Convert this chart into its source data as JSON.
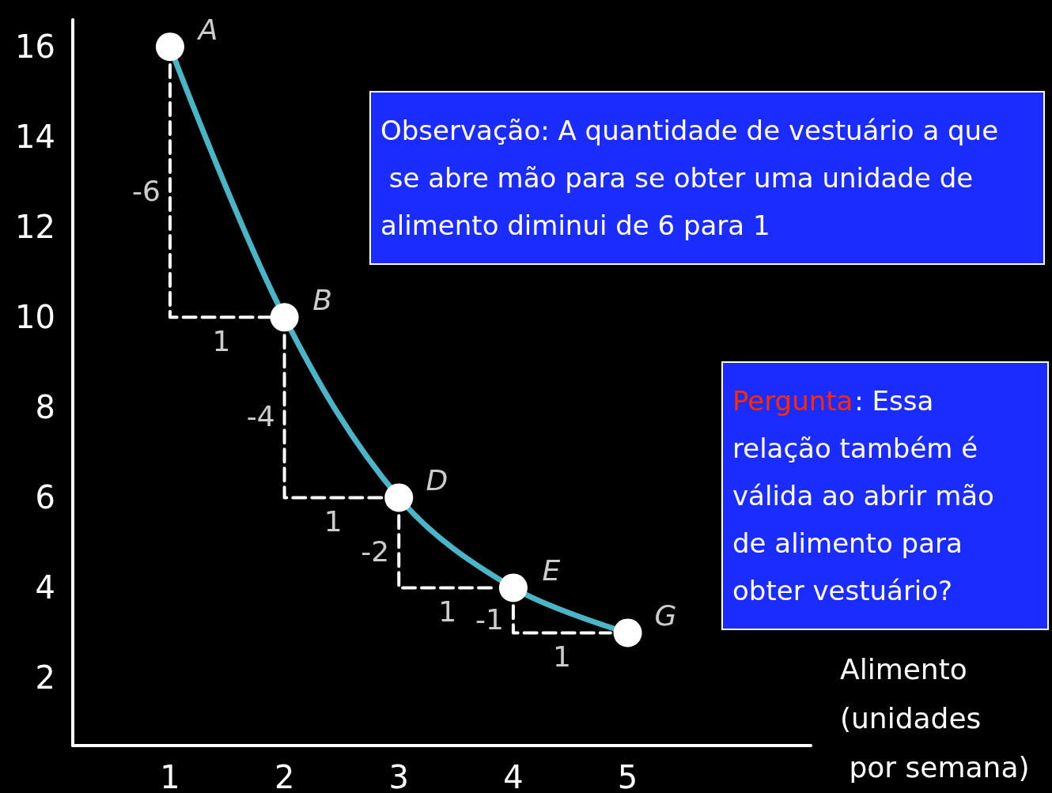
{
  "chart_data": {
    "type": "line",
    "xlabel": "Alimento\n(unidades\n por semana)",
    "x": [
      1,
      2,
      3,
      4,
      5
    ],
    "series": [
      {
        "color": "#4bb5c8",
        "values": [
          16,
          10,
          6,
          4,
          3
        ],
        "marker": "circle"
      },
      {
        "type": "line",
        "line_style": "dashed",
        "color": "#ffffff",
        "x": [
          1,
          1,
          1.9
        ],
        "values": [
          15.6,
          10,
          10
        ],
        "marker": "none"
      },
      {
        "type": "line",
        "line_style": "dashed",
        "color": "#ffffff",
        "x": [
          2,
          2,
          2.85
        ],
        "values": [
          9.6,
          6,
          6
        ],
        "marker": "none"
      },
      {
        "type": "line",
        "line_style": "dashed",
        "color": "#ffffff",
        "x": [
          3,
          3,
          3.85
        ],
        "values": [
          5.6,
          4,
          4
        ],
        "marker": "none"
      },
      {
        "type": "line",
        "line_style": "dashed",
        "color": "#ffffff",
        "x": [
          4,
          4,
          4.85
        ],
        "values": [
          3.6,
          3,
          3
        ],
        "marker": "none"
      }
    ],
    "xlim": [
      0.15,
      6.6
    ],
    "ylim": [
      0.5,
      16.6
    ],
    "xticks": [
      1,
      2,
      3,
      4,
      5
    ],
    "yticks": [
      2,
      4,
      6,
      8,
      10,
      12,
      14,
      16
    ],
    "grid": false,
    "annotations": [
      "Observação: A quantidade de vestuário a que se abre mão para se obter uma unidade de alimento diminui de 6 para 1",
      "Pergunta: Essa relação também é válida ao abrir mão de alimento para obter vestuário?",
      "A",
      "B",
      "D",
      "E",
      "G",
      "-6",
      "1",
      "-4",
      "1",
      "-2",
      "1",
      "-1",
      "1"
    ]
  }
}
